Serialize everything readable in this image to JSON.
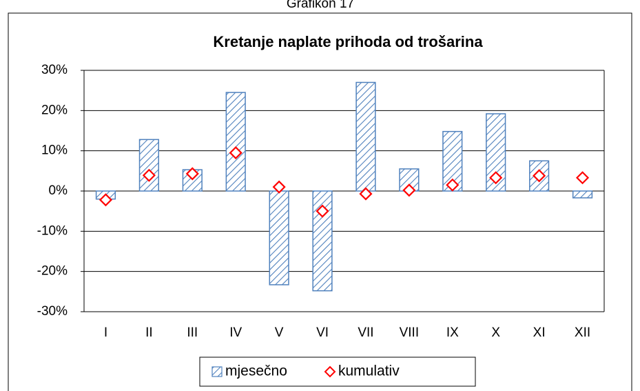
{
  "caption": "Grafikon 17",
  "chart_data": {
    "type": "bar",
    "title": "Kretanje naplate prihoda od trošarina",
    "categories": [
      "I",
      "II",
      "III",
      "IV",
      "V",
      "VI",
      "VII",
      "VIII",
      "IX",
      "X",
      "XI",
      "XII"
    ],
    "series": [
      {
        "name": "mjesečno",
        "type": "bar",
        "color": "#4f81bd",
        "values": [
          -2.0,
          12.8,
          5.3,
          24.5,
          -23.3,
          -24.8,
          27.0,
          5.5,
          14.8,
          19.2,
          7.5,
          -1.7
        ]
      },
      {
        "name": "kumulativ",
        "type": "marker",
        "color": "#ff0000",
        "values": [
          -2.2,
          3.9,
          4.3,
          9.5,
          1.0,
          -5.0,
          -0.7,
          0.2,
          1.5,
          3.3,
          3.8,
          3.3
        ]
      }
    ],
    "ylim": [
      -30,
      30
    ],
    "yticks": [
      {
        "value": -30,
        "label": "-30%"
      },
      {
        "value": -20,
        "label": "-20%"
      },
      {
        "value": -10,
        "label": "-10%"
      },
      {
        "value": 0,
        "label": "0%"
      },
      {
        "value": 10,
        "label": "10%"
      },
      {
        "value": 20,
        "label": "20%"
      },
      {
        "value": 30,
        "label": "30%"
      }
    ],
    "grid": true,
    "legend": "bottom"
  }
}
